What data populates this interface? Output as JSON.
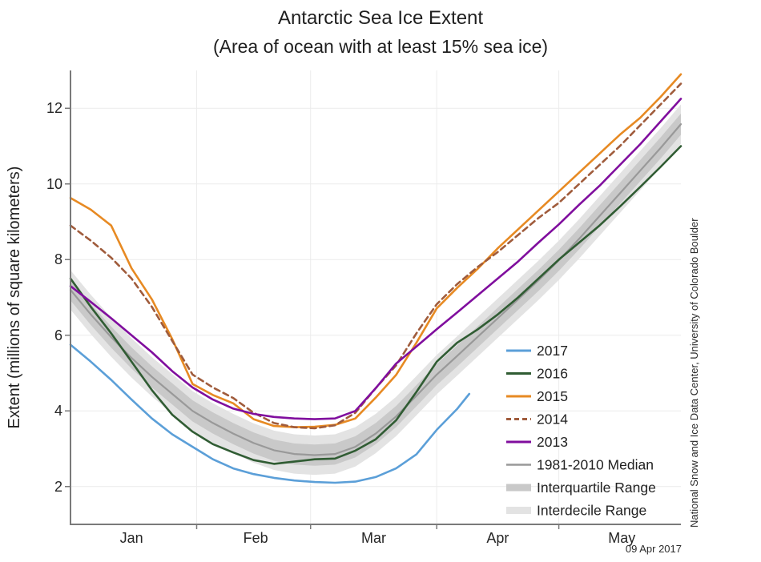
{
  "title": "Antarctic Sea Ice Extent",
  "subtitle": "(Area of ocean with at least 15% sea ice)",
  "y_axis": {
    "label": "Extent (millions of square kilometers)",
    "ticks": [
      "2",
      "4",
      "6",
      "8",
      "10",
      "12"
    ]
  },
  "x_axis": {
    "months": [
      "Jan",
      "Feb",
      "Mar",
      "Apr",
      "May"
    ]
  },
  "attribution": "National Snow and Ice Data Center, University of Colorado Boulder",
  "date_label": "09 Apr 2017",
  "legend": {
    "items": [
      {
        "label": "2017",
        "color": "#5B9FD8",
        "swatch": "line"
      },
      {
        "label": "2016",
        "color": "#305C33",
        "swatch": "line"
      },
      {
        "label": "2015",
        "color": "#E78A23",
        "swatch": "line"
      },
      {
        "label": "2014",
        "color": "#A05C3C",
        "swatch": "dashed-line"
      },
      {
        "label": "2013",
        "color": "#800E9E",
        "swatch": "line"
      },
      {
        "label": "1981-2010 Median",
        "color": "#999999",
        "swatch": "line"
      },
      {
        "label": "Interquartile Range",
        "color": "#C9C9C9",
        "swatch": "band"
      },
      {
        "label": "Interdecile Range",
        "color": "#E3E3E3",
        "swatch": "band"
      }
    ]
  },
  "chart_data": {
    "type": "line",
    "title": "Antarctic Sea Ice Extent",
    "subtitle": "(Area of ocean with at least 15% sea ice)",
    "xlabel": "",
    "ylabel": "Extent (millions of square kilometers)",
    "x_unit": "days since Jan 1",
    "xlim": [
      0,
      150
    ],
    "ylim": [
      1.0,
      13.0
    ],
    "y_ticks": [
      2,
      4,
      6,
      8,
      10,
      12
    ],
    "month_ticks": {
      "labels": [
        "Jan",
        "Feb",
        "Mar",
        "Apr",
        "May"
      ],
      "boundary_days": [
        31,
        59,
        90,
        120
      ],
      "label_days": [
        15,
        45.5,
        74.5,
        105,
        135.5
      ]
    },
    "grid": true,
    "legend_position": "inside-right",
    "x": [
      0,
      5,
      10,
      15,
      20,
      25,
      30,
      35,
      40,
      45,
      50,
      55,
      60,
      65,
      70,
      75,
      80,
      85,
      90,
      95,
      100,
      105,
      110,
      115,
      120,
      125,
      130,
      135,
      140,
      145,
      150
    ],
    "series": [
      {
        "name": "2017",
        "color": "#5B9FD8",
        "width": 2.6,
        "x": [
          0,
          5,
          10,
          15,
          20,
          25,
          30,
          35,
          40,
          45,
          50,
          55,
          60,
          65,
          70,
          75,
          80,
          85,
          90,
          95,
          98
        ],
        "values": [
          5.75,
          5.3,
          4.82,
          4.3,
          3.8,
          3.38,
          3.05,
          2.72,
          2.48,
          2.33,
          2.23,
          2.16,
          2.12,
          2.1,
          2.13,
          2.25,
          2.48,
          2.85,
          3.5,
          4.05,
          4.45
        ]
      },
      {
        "name": "2016",
        "color": "#305C33",
        "width": 2.6,
        "values": [
          7.5,
          6.75,
          6.05,
          5.3,
          4.55,
          3.9,
          3.45,
          3.12,
          2.9,
          2.7,
          2.6,
          2.66,
          2.72,
          2.74,
          2.95,
          3.25,
          3.75,
          4.5,
          5.3,
          5.8,
          6.15,
          6.55,
          7.0,
          7.5,
          8.0,
          8.45,
          8.9,
          9.4,
          9.92,
          10.45,
          11.0
        ]
      },
      {
        "name": "2015",
        "color": "#E78A23",
        "width": 2.6,
        "values": [
          9.63,
          9.32,
          8.9,
          7.77,
          6.95,
          5.9,
          4.71,
          4.42,
          4.2,
          3.78,
          3.6,
          3.57,
          3.58,
          3.63,
          3.8,
          4.35,
          4.95,
          5.8,
          6.71,
          7.25,
          7.75,
          8.3,
          8.8,
          9.3,
          9.8,
          10.3,
          10.8,
          11.3,
          11.75,
          12.3,
          12.9
        ]
      },
      {
        "name": "2014",
        "color": "#A05C3C",
        "width": 2.6,
        "dash": "7 5",
        "values": [
          8.9,
          8.5,
          8.05,
          7.5,
          6.75,
          5.85,
          4.96,
          4.62,
          4.34,
          3.95,
          3.68,
          3.57,
          3.54,
          3.62,
          3.95,
          4.6,
          5.2,
          6.05,
          6.82,
          7.35,
          7.8,
          8.2,
          8.65,
          9.1,
          9.5,
          10.0,
          10.5,
          11.0,
          11.55,
          12.1,
          12.65
        ]
      },
      {
        "name": "2013",
        "color": "#800E9E",
        "width": 2.6,
        "values": [
          7.3,
          6.88,
          6.45,
          6.0,
          5.55,
          5.05,
          4.62,
          4.3,
          4.06,
          3.92,
          3.84,
          3.8,
          3.78,
          3.8,
          4.0,
          4.6,
          5.25,
          5.7,
          6.16,
          6.6,
          7.05,
          7.5,
          7.95,
          8.45,
          8.93,
          9.45,
          9.95,
          10.5,
          11.05,
          11.65,
          12.25
        ]
      },
      {
        "name": "1981-2010 Median",
        "color": "#999999",
        "width": 2.2,
        "values": [
          7.2,
          6.55,
          5.95,
          5.4,
          4.9,
          4.45,
          4.0,
          3.68,
          3.4,
          3.15,
          2.96,
          2.86,
          2.83,
          2.86,
          3.05,
          3.4,
          3.85,
          4.4,
          4.96,
          5.45,
          5.95,
          6.45,
          6.95,
          7.45,
          7.98,
          8.55,
          9.15,
          9.75,
          10.35,
          10.95,
          11.58
        ]
      }
    ],
    "bands": [
      {
        "name": "Interdecile Range",
        "base": "1981-2010 Median",
        "half_width": 0.52,
        "color": "#E3E3E3"
      },
      {
        "name": "Interquartile Range",
        "base": "1981-2010 Median",
        "half_width": 0.28,
        "color": "#C9C9C9"
      }
    ]
  }
}
